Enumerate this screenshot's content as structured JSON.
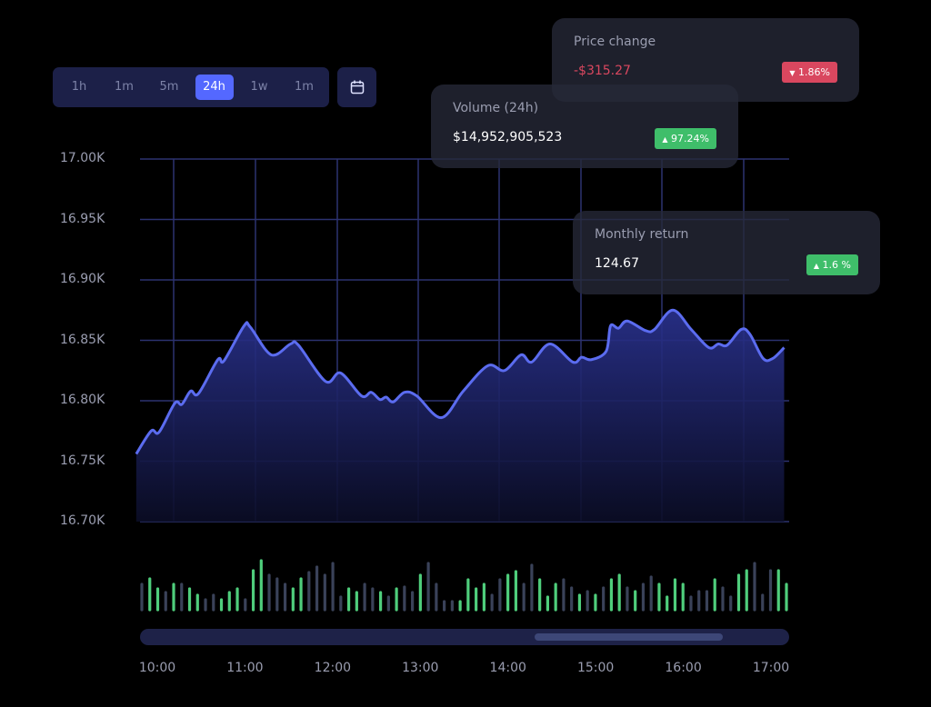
{
  "timeframes": {
    "options": [
      "1h",
      "1m",
      "5m",
      "24h",
      "1w",
      "1m"
    ],
    "active": "24h"
  },
  "calendar_icon": "calendar-icon",
  "cards": {
    "price_change": {
      "title": "Price change",
      "value": "-$315.27",
      "badge": "1.86%",
      "direction": "down",
      "color": "#d9475f"
    },
    "volume": {
      "title": "Volume (24h)",
      "value": "$14,952,905,523",
      "badge": "97.24%",
      "direction": "up",
      "color": "#3fbe6a"
    },
    "monthly_return": {
      "title": "Monthly return",
      "value": "124.67",
      "badge": "1.6 %",
      "direction": "up",
      "color": "#3fbe6a"
    }
  },
  "scrollbar": {
    "view_start_fraction": 0.608,
    "view_end_fraction": 0.898
  },
  "chart_data": {
    "type": "area",
    "title": "",
    "xlabel": "",
    "ylabel": "",
    "ylim": [
      16.7,
      17.0
    ],
    "xlim": [
      9.76,
      17.15
    ],
    "yticks": [
      "17.00K",
      "16.95K",
      "16.90K",
      "16.85K",
      "16.80K",
      "16.75K",
      "16.70K"
    ],
    "ytick_values": [
      17.0,
      16.95,
      16.9,
      16.85,
      16.8,
      16.75,
      16.7
    ],
    "xticks": [
      "10:00",
      "11:00",
      "12:00",
      "13:00",
      "14:00",
      "15:00",
      "16:00",
      "17:00"
    ],
    "grid": true,
    "line_color": "#5b6cf0",
    "x": [
      9.76,
      9.93,
      10.02,
      10.2,
      10.28,
      10.38,
      10.47,
      10.69,
      10.76,
      10.99,
      11.06,
      11.3,
      11.52,
      11.61,
      11.92,
      12.09,
      12.33,
      12.44,
      12.54,
      12.61,
      12.69,
      12.82,
      12.96,
      13.24,
      13.49,
      13.77,
      13.96,
      14.15,
      14.27,
      14.48,
      14.74,
      14.84,
      14.95,
      15.12,
      15.17,
      15.26,
      15.36,
      15.57,
      15.67,
      15.88,
      16.09,
      16.29,
      16.4,
      16.5,
      16.66,
      16.76,
      16.91,
      17.02,
      17.15
    ],
    "y": [
      16.756,
      16.775,
      16.774,
      16.798,
      16.797,
      16.808,
      16.806,
      16.834,
      16.833,
      16.862,
      16.861,
      16.838,
      16.847,
      16.846,
      16.816,
      16.823,
      16.804,
      16.807,
      16.801,
      16.803,
      16.799,
      16.807,
      16.804,
      16.786,
      16.808,
      16.829,
      16.825,
      16.838,
      16.832,
      16.847,
      16.832,
      16.836,
      16.834,
      16.841,
      16.862,
      16.86,
      16.866,
      16.858,
      16.859,
      16.875,
      16.859,
      16.844,
      16.847,
      16.846,
      16.859,
      16.855,
      16.835,
      16.835,
      16.844
    ],
    "volume": {
      "up_color": "#4fce7c",
      "down_color": "#3a4259",
      "values": [
        28,
        34,
        23,
        19,
        28,
        28,
        23,
        16,
        11,
        16,
        11,
        19,
        23,
        11,
        43,
        54,
        38,
        34,
        28,
        23,
        34,
        41,
        47,
        38,
        51,
        14,
        23,
        19,
        28,
        23,
        19,
        14,
        23,
        25,
        19,
        38,
        51,
        28,
        9,
        9,
        9,
        33,
        23,
        28,
        16,
        33,
        38,
        42,
        28,
        49,
        33,
        14,
        28,
        33,
        24,
        16,
        20,
        16,
        24,
        33,
        38,
        24,
        20,
        28,
        36,
        28,
        14,
        33,
        28,
        14,
        20,
        20,
        33,
        24,
        14,
        38,
        43,
        51,
        16,
        43,
        43,
        28
      ],
      "up": [
        0,
        1,
        1,
        0,
        1,
        0,
        1,
        1,
        0,
        0,
        1,
        1,
        1,
        0,
        1,
        1,
        0,
        0,
        0,
        1,
        1,
        0,
        0,
        0,
        0,
        0,
        1,
        1,
        0,
        0,
        1,
        0,
        1,
        0,
        0,
        1,
        0,
        0,
        0,
        0,
        1,
        1,
        1,
        1,
        0,
        0,
        1,
        1,
        0,
        0,
        1,
        1,
        1,
        0,
        0,
        1,
        0,
        1,
        0,
        1,
        1,
        0,
        1,
        0,
        0,
        1,
        1,
        1,
        1,
        0,
        0,
        0,
        1,
        0,
        0,
        1,
        1,
        0,
        0,
        0,
        1,
        1
      ]
    }
  }
}
